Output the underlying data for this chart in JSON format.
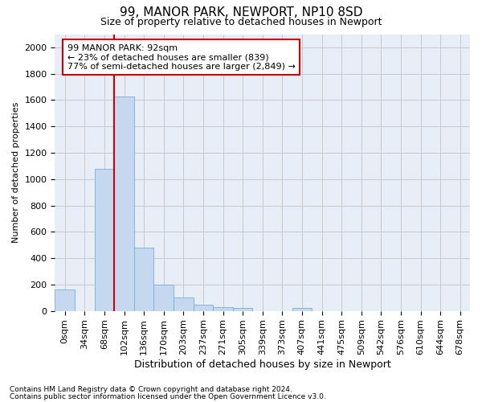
{
  "title1": "99, MANOR PARK, NEWPORT, NP10 8SD",
  "title2": "Size of property relative to detached houses in Newport",
  "xlabel": "Distribution of detached houses by size in Newport",
  "ylabel": "Number of detached properties",
  "footnote1": "Contains HM Land Registry data © Crown copyright and database right 2024.",
  "footnote2": "Contains public sector information licensed under the Open Government Licence v3.0.",
  "categories": [
    "0sqm",
    "34sqm",
    "68sqm",
    "102sqm",
    "136sqm",
    "170sqm",
    "203sqm",
    "237sqm",
    "271sqm",
    "305sqm",
    "339sqm",
    "373sqm",
    "407sqm",
    "441sqm",
    "475sqm",
    "509sqm",
    "542sqm",
    "576sqm",
    "610sqm",
    "644sqm",
    "678sqm"
  ],
  "bar_values": [
    165,
    0,
    1080,
    1630,
    480,
    200,
    100,
    45,
    30,
    20,
    0,
    0,
    20,
    0,
    0,
    0,
    0,
    0,
    0,
    0,
    0
  ],
  "bar_color": "#c5d8f0",
  "bar_edge_color": "#7aadd4",
  "grid_color": "#c8c8c8",
  "bg_color": "#e8eef8",
  "vline_x": 2.5,
  "vline_color": "#cc0000",
  "annotation_box_text": "99 MANOR PARK: 92sqm\n← 23% of detached houses are smaller (839)\n77% of semi-detached houses are larger (2,849) →",
  "annotation_box_color": "#cc0000",
  "annotation_box_bg": "#ffffff",
  "ylim": [
    0,
    2100
  ],
  "yticks": [
    0,
    200,
    400,
    600,
    800,
    1000,
    1200,
    1400,
    1600,
    1800,
    2000
  ],
  "title1_fontsize": 11,
  "title2_fontsize": 9,
  "xlabel_fontsize": 9,
  "ylabel_fontsize": 8,
  "tick_fontsize": 8,
  "annot_fontsize": 8,
  "footnote_fontsize": 6.5
}
